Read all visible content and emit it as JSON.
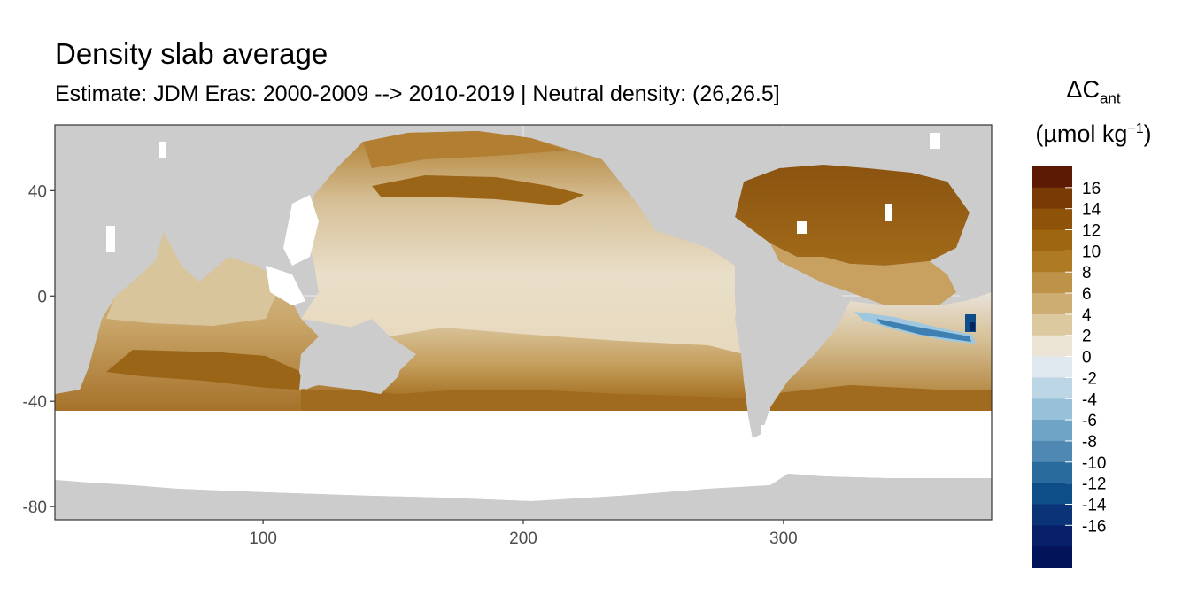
{
  "title": "Density slab average",
  "subtitle": "Estimate: JDM Eras: 2000-2009 --> 2010-2019 | Neutral density: (26,26.5]",
  "legend": {
    "delta_symbol": "ΔC",
    "delta_sub": "ant",
    "unit_open": "(µmol kg",
    "unit_sup": "−1",
    "unit_close": ")",
    "breaks": [
      16,
      14,
      12,
      10,
      8,
      6,
      4,
      2,
      0,
      -2,
      -4,
      -6,
      -8,
      -10,
      -12,
      -14,
      -16
    ],
    "break_labels": [
      "16",
      "14",
      "12",
      "10",
      "8",
      "6",
      "4",
      "2",
      "0",
      "-2",
      "-4",
      "-6",
      "-8",
      "-10",
      "-12",
      "-14",
      "-16"
    ],
    "colors": [
      "#5c1a05",
      "#7a3a06",
      "#8e5208",
      "#9e660f",
      "#ae7a23",
      "#bd9349",
      "#cdad72",
      "#dcc9a0",
      "#ece4d4",
      "#dfe9ef",
      "#bcd6e6",
      "#97c1d9",
      "#6fa4c6",
      "#4e88b3",
      "#2a6b9e",
      "#0e4e88",
      "#0b3478",
      "#08206a",
      "#031359"
    ]
  },
  "axes": {
    "x_ticks": [
      100,
      200,
      300
    ],
    "x_tick_labels": [
      "100",
      "200",
      "300"
    ],
    "y_ticks": [
      40,
      0,
      -40,
      -80
    ],
    "y_tick_labels": [
      "40",
      "0",
      "-40",
      "-80"
    ],
    "x_range": [
      20,
      380
    ],
    "y_range": [
      -85,
      65
    ]
  },
  "colors": {
    "land": "#cccccc",
    "no_data": "#ffffff",
    "panel_border": "#333333",
    "grid": "#ebebeb"
  }
}
